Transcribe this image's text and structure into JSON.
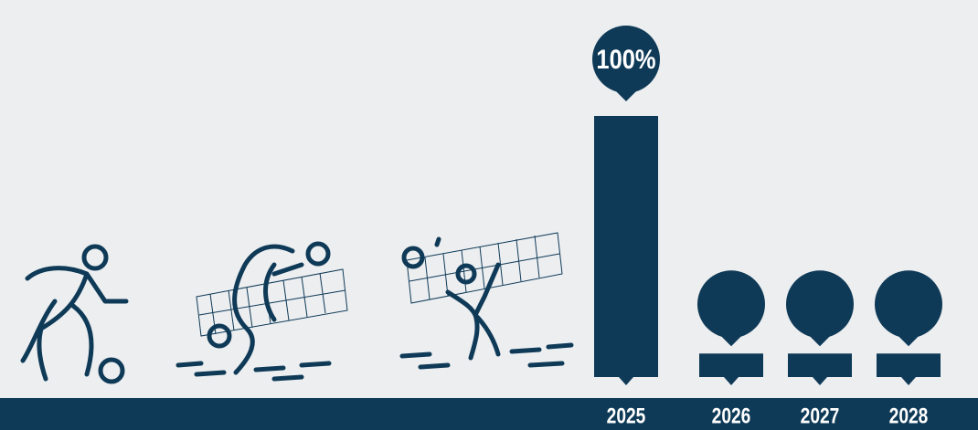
{
  "chart_data": {
    "type": "bar",
    "categories": [
      "2025",
      "2026",
      "2027",
      "2028"
    ],
    "values": [
      100,
      9,
      9,
      9
    ],
    "value_labels": [
      "100%",
      null,
      null,
      null
    ],
    "color": "#0f3a57",
    "ylim": [
      0,
      100
    ]
  }
}
